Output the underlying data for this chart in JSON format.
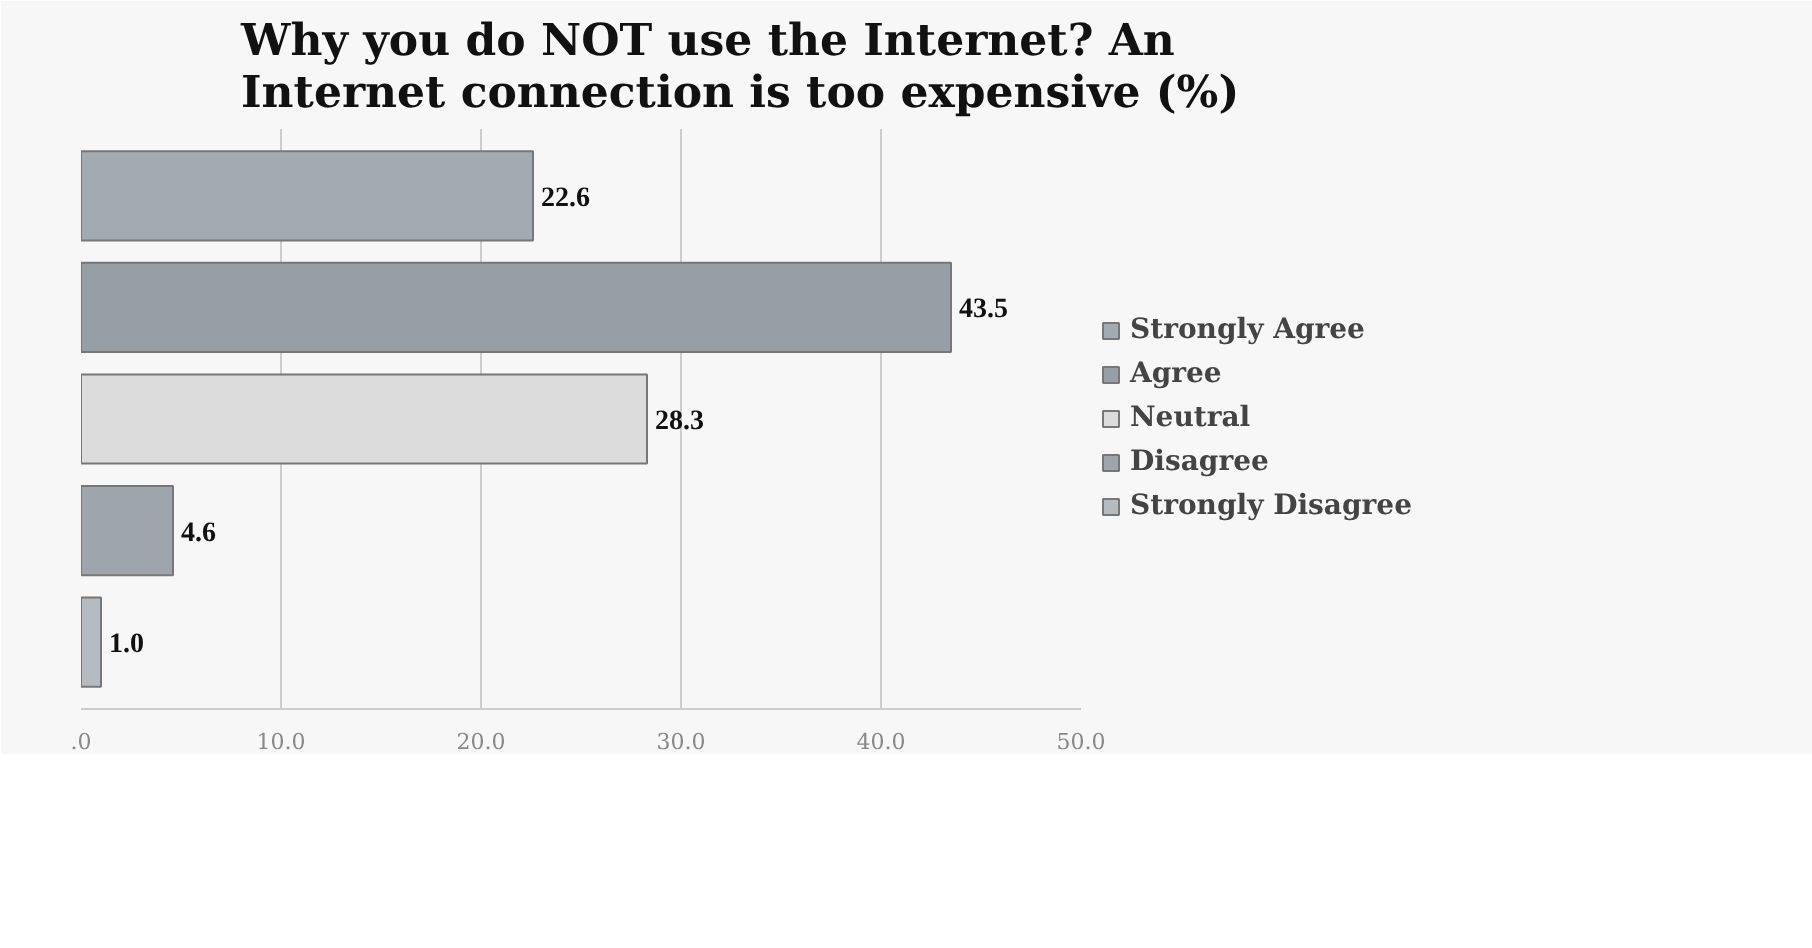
{
  "chart_data": {
    "type": "bar",
    "orientation": "horizontal",
    "title": "Why you do NOT use the Internet?  An\nInternet connection is too expensive (%)",
    "categories": [
      null
    ],
    "series": [
      {
        "name": "Strongly Agree",
        "color": "#a3abb2",
        "values": [
          22.6
        ],
        "value_labels": [
          "22.6"
        ]
      },
      {
        "name": "Agree",
        "color": "#969ea6",
        "values": [
          43.5
        ],
        "value_labels": [
          "43.5"
        ]
      },
      {
        "name": "Neutral",
        "color": "#dcdcdc",
        "values": [
          28.3
        ],
        "value_labels": [
          "28.3"
        ]
      },
      {
        "name": "Disagree",
        "color": "#9ea5ac",
        "values": [
          4.6
        ],
        "value_labels": [
          "4.6"
        ]
      },
      {
        "name": "Strongly Disagree",
        "color": "#b4bbc1",
        "values": [
          1.0
        ],
        "value_labels": [
          "1.0"
        ]
      }
    ],
    "xlim": [
      0,
      50
    ],
    "xticks": [
      {
        "value": 0,
        "label": ".0"
      },
      {
        "value": 10,
        "label": "10.0"
      },
      {
        "value": 20,
        "label": "20.0"
      },
      {
        "value": 30,
        "label": "30.0"
      },
      {
        "value": 40,
        "label": "40.0"
      },
      {
        "value": 50,
        "label": "50.0"
      }
    ],
    "grid": "x",
    "legend": "right",
    "data_labels": true
  }
}
